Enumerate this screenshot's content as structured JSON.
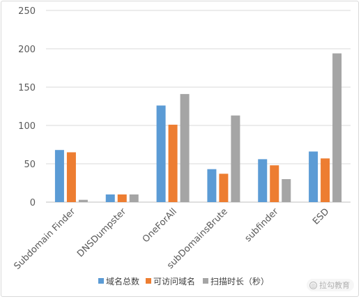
{
  "chart_data": {
    "type": "bar",
    "categories": [
      "Subdomain Finder",
      "DNSDumpster",
      "OneForAll",
      "subDomainsBrute",
      "subfinder",
      "ESD"
    ],
    "series": [
      {
        "name": "域名总数",
        "color": "#5b9bd5",
        "values": [
          68,
          10,
          126,
          43,
          56,
          66
        ]
      },
      {
        "name": "可访问域名",
        "color": "#ed7d31",
        "values": [
          65,
          10,
          101,
          37,
          48,
          57
        ]
      },
      {
        "name": "扫描时长（秒）",
        "color": "#a5a5a5",
        "values": [
          3,
          10,
          141,
          113,
          30,
          194
        ]
      }
    ],
    "yticks": [
      0,
      50,
      100,
      150,
      200,
      250
    ],
    "ylim": [
      0,
      250
    ],
    "grid": true,
    "legend": "bottom",
    "title": "",
    "xlabel": "",
    "ylabel": ""
  },
  "watermark": {
    "text": "拉勾教育",
    "icon": "lagou-logo-icon"
  }
}
